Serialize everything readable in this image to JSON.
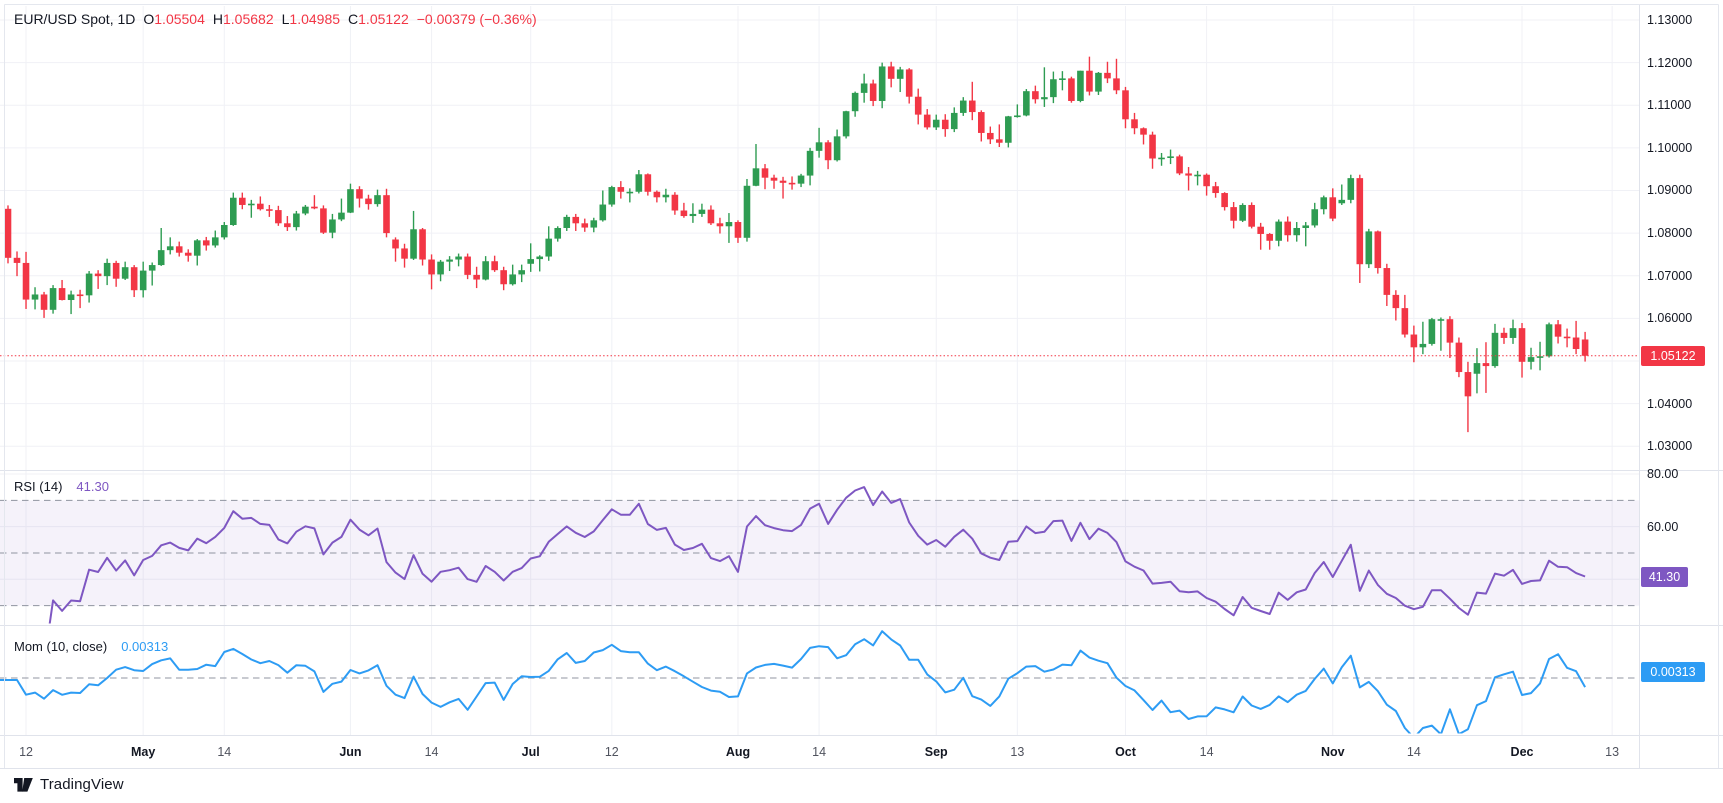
{
  "legend": {
    "symbol": "EUR/USD Spot, 1D",
    "open_label": "O",
    "open": "1.05504",
    "high_label": "H",
    "high": "1.05682",
    "low_label": "L",
    "low": "1.04985",
    "close_label": "C",
    "close": "1.05122",
    "change": "−0.00379 (−0.36%)"
  },
  "rsi_pane": {
    "label": "RSI (14)",
    "value": "41.30",
    "badge": "41.30",
    "ticks": [
      {
        "label": "80.00",
        "value": 80
      },
      {
        "label": "60.00",
        "value": 60
      }
    ]
  },
  "mom_pane": {
    "label": "Mom (10, close)",
    "value": "0.00313",
    "badge": "0.00313"
  },
  "price_axis": {
    "ticks": [
      "1.13000",
      "1.12000",
      "1.11000",
      "1.10000",
      "1.09000",
      "1.08000",
      "1.07000",
      "1.06000",
      "1.05000",
      "1.04000",
      "1.03000"
    ],
    "badge": "1.05122",
    "badge_value": 1.05122
  },
  "time_axis": {
    "ticks": [
      {
        "label": "12",
        "i": 2
      },
      {
        "label": "May",
        "i": 15,
        "bold": true
      },
      {
        "label": "14",
        "i": 24
      },
      {
        "label": "Jun",
        "i": 38,
        "bold": true
      },
      {
        "label": "14",
        "i": 47
      },
      {
        "label": "Jul",
        "i": 58,
        "bold": true
      },
      {
        "label": "12",
        "i": 67
      },
      {
        "label": "Aug",
        "i": 81,
        "bold": true
      },
      {
        "label": "14",
        "i": 90
      },
      {
        "label": "Sep",
        "i": 103,
        "bold": true
      },
      {
        "label": "13",
        "i": 112
      },
      {
        "label": "Oct",
        "i": 124,
        "bold": true
      },
      {
        "label": "14",
        "i": 133
      },
      {
        "label": "Nov",
        "i": 147,
        "bold": true
      },
      {
        "label": "14",
        "i": 156
      },
      {
        "label": "Dec",
        "i": 168,
        "bold": true
      },
      {
        "label": "13",
        "i": 178
      }
    ]
  },
  "footer": {
    "brand": "TradingView"
  },
  "colors": {
    "up": "#2e9c52",
    "down": "#f23645",
    "rsi": "#7e57c2",
    "mom": "#2d9cf4",
    "grid": "#f0f1f6",
    "sep": "#e0e3eb",
    "frame": "#e4e7ee",
    "dash": "#9094a0",
    "band": "rgba(126,87,194,0.08)",
    "text": "#131722",
    "text_soft": "#50535e"
  },
  "chart_data": {
    "type": "candlestick",
    "title": "EUR/USD Spot",
    "timeframe": "1D",
    "last": {
      "open": 1.05504,
      "high": 1.05682,
      "low": 1.04985,
      "close": 1.05122,
      "change": -0.00379,
      "change_pct": -0.36
    },
    "price_axis_range": [
      1.0245,
      1.1335
    ],
    "x_tick_labels": [
      "12",
      "May",
      "14",
      "Jun",
      "14",
      "Jul",
      "12",
      "Aug",
      "14",
      "Sep",
      "13",
      "Oct",
      "14",
      "Nov",
      "14",
      "Dec",
      "13"
    ],
    "indicators": [
      {
        "type": "RSI",
        "period": 14,
        "last": 41.3,
        "levels": [
          70,
          50,
          30
        ],
        "axis_labels": [
          80,
          60
        ]
      },
      {
        "type": "Momentum",
        "period": 10,
        "source": "close",
        "last": 0.00313,
        "zero_line": 0
      }
    ],
    "candles": [
      [
        1.0857,
        1.0865,
        1.0729,
        1.0742
      ],
      [
        1.0742,
        1.0757,
        1.0699,
        1.073
      ],
      [
        1.073,
        1.0756,
        1.0622,
        1.0644
      ],
      [
        1.0644,
        1.0673,
        1.0621,
        1.0656
      ],
      [
        1.0656,
        1.0662,
        1.0601,
        1.062
      ],
      [
        1.062,
        1.0678,
        1.0611,
        1.0671
      ],
      [
        1.0671,
        1.069,
        1.0642,
        1.0643
      ],
      [
        1.0643,
        1.0665,
        1.061,
        1.0656
      ],
      [
        1.0656,
        1.0667,
        1.0624,
        1.0654
      ],
      [
        1.0654,
        1.0711,
        1.0637,
        1.0705
      ],
      [
        1.0705,
        1.0713,
        1.0669,
        1.0699
      ],
      [
        1.0699,
        1.074,
        1.0678,
        1.073
      ],
      [
        1.073,
        1.0735,
        1.0674,
        1.0693
      ],
      [
        1.0693,
        1.0733,
        1.069,
        1.072
      ],
      [
        1.072,
        1.0725,
        1.065,
        1.0666
      ],
      [
        1.0666,
        1.0733,
        1.0649,
        1.0712
      ],
      [
        1.0712,
        1.0731,
        1.0677,
        1.0725
      ],
      [
        1.0725,
        1.0812,
        1.0723,
        1.076
      ],
      [
        1.076,
        1.079,
        1.075,
        1.0769
      ],
      [
        1.0769,
        1.078,
        1.0745,
        1.0754
      ],
      [
        1.0754,
        1.0762,
        1.0733,
        1.0747
      ],
      [
        1.0747,
        1.0786,
        1.0724,
        1.0783
      ],
      [
        1.0783,
        1.0791,
        1.0759,
        1.0771
      ],
      [
        1.0771,
        1.0806,
        1.0766,
        1.079
      ],
      [
        1.079,
        1.0826,
        1.0785,
        1.0819
      ],
      [
        1.0819,
        1.0895,
        1.0817,
        1.0883
      ],
      [
        1.0883,
        1.0895,
        1.0856,
        1.0866
      ],
      [
        1.0866,
        1.0878,
        1.0836,
        1.0869
      ],
      [
        1.0869,
        1.0886,
        1.0853,
        1.0856
      ],
      [
        1.0856,
        1.0866,
        1.0838,
        1.0854
      ],
      [
        1.0854,
        1.0864,
        1.0817,
        1.0823
      ],
      [
        1.0823,
        1.084,
        1.0805,
        1.0814
      ],
      [
        1.0814,
        1.0852,
        1.0806,
        1.0846
      ],
      [
        1.0846,
        1.0866,
        1.0842,
        1.0862
      ],
      [
        1.0862,
        1.0889,
        1.0856,
        1.0858
      ],
      [
        1.0858,
        1.0865,
        1.0798,
        1.0801
      ],
      [
        1.0801,
        1.0845,
        1.0788,
        1.0832
      ],
      [
        1.0832,
        1.0881,
        1.0828,
        1.0848
      ],
      [
        1.0848,
        1.0916,
        1.0847,
        1.0903
      ],
      [
        1.0903,
        1.091,
        1.086,
        1.0881
      ],
      [
        1.0881,
        1.089,
        1.0855,
        1.0868
      ],
      [
        1.0868,
        1.0902,
        1.0862,
        1.0889
      ],
      [
        1.0889,
        1.0904,
        1.079,
        1.08
      ],
      [
        1.0785,
        1.079,
        1.0733,
        1.0764
      ],
      [
        1.0764,
        1.0775,
        1.0719,
        1.074
      ],
      [
        1.074,
        1.0852,
        1.0737,
        1.0809
      ],
      [
        1.0809,
        1.0812,
        1.0724,
        1.0738
      ],
      [
        1.0738,
        1.075,
        1.0668,
        1.0703
      ],
      [
        1.0703,
        1.0737,
        1.0687,
        1.0733
      ],
      [
        1.0733,
        1.0746,
        1.0711,
        1.0738
      ],
      [
        1.0738,
        1.0752,
        1.0722,
        1.0745
      ],
      [
        1.0745,
        1.0752,
        1.0692,
        1.0702
      ],
      [
        1.0702,
        1.0721,
        1.0671,
        1.0691
      ],
      [
        1.0691,
        1.0746,
        1.0689,
        1.0734
      ],
      [
        1.0734,
        1.0747,
        1.0709,
        1.0713
      ],
      [
        1.0713,
        1.0721,
        1.0666,
        1.068
      ],
      [
        1.068,
        1.0726,
        1.0677,
        1.0703
      ],
      [
        1.0703,
        1.0726,
        1.0685,
        1.0713
      ],
      [
        1.0728,
        1.0776,
        1.0709,
        1.0739
      ],
      [
        1.0739,
        1.0748,
        1.071,
        1.0745
      ],
      [
        1.0745,
        1.0816,
        1.0735,
        1.0787
      ],
      [
        1.0787,
        1.0816,
        1.078,
        1.0812
      ],
      [
        1.0812,
        1.0843,
        1.0805,
        1.0838
      ],
      [
        1.0838,
        1.0845,
        1.0805,
        1.0823
      ],
      [
        1.0823,
        1.0834,
        1.0803,
        1.0813
      ],
      [
        1.0813,
        1.0836,
        1.0802,
        1.083
      ],
      [
        1.083,
        1.09,
        1.0827,
        1.0867
      ],
      [
        1.0867,
        1.0911,
        1.0862,
        1.0908
      ],
      [
        1.0908,
        1.0922,
        1.0881,
        1.0897
      ],
      [
        1.0897,
        1.0905,
        1.0872,
        1.0897
      ],
      [
        1.0897,
        1.0948,
        1.0893,
        1.0938
      ],
      [
        1.0938,
        1.094,
        1.0888,
        1.0897
      ],
      [
        1.0897,
        1.09,
        1.0872,
        1.0884
      ],
      [
        1.0884,
        1.0904,
        1.0872,
        1.089
      ],
      [
        1.089,
        1.0896,
        1.0843,
        1.0853
      ],
      [
        1.0853,
        1.0871,
        1.0836,
        1.084
      ],
      [
        1.084,
        1.087,
        1.0824,
        1.0845
      ],
      [
        1.0845,
        1.0869,
        1.0838,
        1.0855
      ],
      [
        1.0855,
        1.0865,
        1.0819,
        1.0823
      ],
      [
        1.0823,
        1.0836,
        1.0799,
        1.0816
      ],
      [
        1.0816,
        1.0847,
        1.0777,
        1.0826
      ],
      [
        1.0826,
        1.083,
        1.0777,
        1.0789
      ],
      [
        1.0789,
        1.0927,
        1.078,
        1.0911
      ],
      [
        1.0911,
        1.1009,
        1.091,
        1.0952
      ],
      [
        1.0952,
        1.0962,
        1.0903,
        1.093
      ],
      [
        1.093,
        1.0937,
        1.0904,
        1.0923
      ],
      [
        1.0923,
        1.0932,
        1.0881,
        1.0918
      ],
      [
        1.0918,
        1.0933,
        1.0902,
        1.0916
      ],
      [
        1.0916,
        1.0939,
        1.0908,
        1.0935
      ],
      [
        1.0935,
        1.1,
        1.0912,
        1.0993
      ],
      [
        1.0993,
        1.1047,
        1.0977,
        1.1013
      ],
      [
        1.1013,
        1.1018,
        1.095,
        1.0971
      ],
      [
        1.0971,
        1.1043,
        1.0968,
        1.1027
      ],
      [
        1.1027,
        1.1087,
        1.1022,
        1.1086
      ],
      [
        1.1086,
        1.1132,
        1.1073,
        1.1129
      ],
      [
        1.1129,
        1.1174,
        1.1106,
        1.1151
      ],
      [
        1.1151,
        1.116,
        1.1098,
        1.111
      ],
      [
        1.111,
        1.12,
        1.1093,
        1.1191
      ],
      [
        1.1191,
        1.1202,
        1.1142,
        1.1162
      ],
      [
        1.1162,
        1.119,
        1.1131,
        1.1184
      ],
      [
        1.1184,
        1.1187,
        1.1104,
        1.112
      ],
      [
        1.112,
        1.1139,
        1.1055,
        1.1078
      ],
      [
        1.1078,
        1.1091,
        1.1043,
        1.1048
      ],
      [
        1.1048,
        1.1078,
        1.1042,
        1.1066
      ],
      [
        1.1066,
        1.1079,
        1.1026,
        1.1044
      ],
      [
        1.1044,
        1.1095,
        1.1037,
        1.1082
      ],
      [
        1.1082,
        1.1119,
        1.1075,
        1.1111
      ],
      [
        1.1111,
        1.1155,
        1.1065,
        1.1084
      ],
      [
        1.1084,
        1.1088,
        1.1015,
        1.1035
      ],
      [
        1.1035,
        1.105,
        1.1009,
        1.102
      ],
      [
        1.102,
        1.1055,
        1.1002,
        1.1012
      ],
      [
        1.1012,
        1.1075,
        1.1001,
        1.1074
      ],
      [
        1.1074,
        1.1102,
        1.1071,
        1.1076
      ],
      [
        1.1076,
        1.1138,
        1.1074,
        1.1133
      ],
      [
        1.1133,
        1.1146,
        1.1104,
        1.1114
      ],
      [
        1.1114,
        1.1189,
        1.1096,
        1.1119
      ],
      [
        1.1119,
        1.1179,
        1.1105,
        1.1161
      ],
      [
        1.1161,
        1.118,
        1.1135,
        1.1163
      ],
      [
        1.1163,
        1.1167,
        1.1106,
        1.111
      ],
      [
        1.111,
        1.1181,
        1.1107,
        1.1181
      ],
      [
        1.1181,
        1.1214,
        1.1123,
        1.1132
      ],
      [
        1.1132,
        1.1178,
        1.1124,
        1.1176
      ],
      [
        1.1176,
        1.1202,
        1.1152,
        1.1163
      ],
      [
        1.1163,
        1.1209,
        1.1126,
        1.1135
      ],
      [
        1.1135,
        1.1143,
        1.1046,
        1.1067
      ],
      [
        1.1067,
        1.1082,
        1.1032,
        1.1046
      ],
      [
        1.1046,
        1.1048,
        1.1008,
        1.1031
      ],
      [
        1.1031,
        1.1038,
        1.0951,
        1.0975
      ],
      [
        1.0975,
        1.0988,
        1.0958,
        1.0977
      ],
      [
        1.0977,
        1.0996,
        1.0962,
        1.098
      ],
      [
        1.098,
        1.0984,
        1.0936,
        1.094
      ],
      [
        1.094,
        1.0955,
        1.09,
        1.0935
      ],
      [
        1.0935,
        1.0946,
        1.0912,
        1.0937
      ],
      [
        1.0937,
        1.094,
        1.0888,
        1.091
      ],
      [
        1.091,
        1.092,
        1.0883,
        1.0894
      ],
      [
        1.0894,
        1.0896,
        1.0853,
        1.0861
      ],
      [
        1.0861,
        1.0873,
        1.0811,
        1.0829
      ],
      [
        1.0829,
        1.087,
        1.0826,
        1.0866
      ],
      [
        1.0866,
        1.0872,
        1.0811,
        1.0815
      ],
      [
        1.0815,
        1.0824,
        1.0761,
        1.0798
      ],
      [
        1.0798,
        1.08,
        1.0761,
        1.0782
      ],
      [
        1.0782,
        1.0832,
        1.0769,
        1.0827
      ],
      [
        1.0827,
        1.0839,
        1.078,
        1.0795
      ],
      [
        1.0795,
        1.0826,
        1.078,
        1.0812
      ],
      [
        1.0812,
        1.0826,
        1.0769,
        1.0818
      ],
      [
        1.0818,
        1.0871,
        1.0813,
        1.0856
      ],
      [
        1.0856,
        1.0888,
        1.0844,
        1.0884
      ],
      [
        1.0884,
        1.0905,
        1.0828,
        1.0834
      ],
      [
        1.087,
        1.0914,
        1.0866,
        1.0878
      ],
      [
        1.0878,
        1.0937,
        1.087,
        1.0929
      ],
      [
        1.0929,
        1.0937,
        1.0683,
        1.0727
      ],
      [
        1.0727,
        1.081,
        1.0718,
        1.0804
      ],
      [
        1.0804,
        1.0806,
        1.0705,
        1.0718
      ],
      [
        1.0718,
        1.0728,
        1.0629,
        1.0655
      ],
      [
        1.0655,
        1.0666,
        1.0595,
        1.0624
      ],
      [
        1.0624,
        1.0655,
        1.0555,
        1.0562
      ],
      [
        1.0562,
        1.0583,
        1.0497,
        1.0532
      ],
      [
        1.0532,
        1.0592,
        1.0516,
        1.054
      ],
      [
        1.054,
        1.0601,
        1.0536,
        1.0598
      ],
      [
        1.0598,
        1.0602,
        1.0524,
        1.0598
      ],
      [
        1.0598,
        1.0605,
        1.0507,
        1.0543
      ],
      [
        1.0543,
        1.0555,
        1.0462,
        1.0474
      ],
      [
        1.0474,
        1.0498,
        1.0333,
        1.0417
      ],
      [
        1.047,
        1.053,
        1.0424,
        1.0495
      ],
      [
        1.0495,
        1.0544,
        1.0425,
        1.0488
      ],
      [
        1.0488,
        1.0587,
        1.0484,
        1.0566
      ],
      [
        1.0566,
        1.0578,
        1.054,
        1.0554
      ],
      [
        1.0554,
        1.0597,
        1.054,
        1.0577
      ],
      [
        1.0577,
        1.0589,
        1.0461,
        1.0498
      ],
      [
        1.0498,
        1.0531,
        1.048,
        1.0509
      ],
      [
        1.0509,
        1.0545,
        1.0478,
        1.0511
      ],
      [
        1.0511,
        1.059,
        1.0508,
        1.0586
      ],
      [
        1.0586,
        1.0596,
        1.0541,
        1.0557
      ],
      [
        1.0557,
        1.0576,
        1.0532,
        1.0555
      ],
      [
        1.0555,
        1.0594,
        1.0516,
        1.0528
      ],
      [
        1.05504,
        1.05682,
        1.04985,
        1.05122
      ]
    ]
  }
}
